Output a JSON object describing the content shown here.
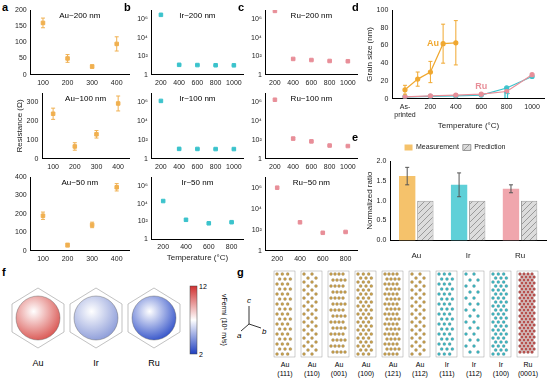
{
  "chart_data": [
    {
      "panel": "a",
      "type": "scatter",
      "annotation": "Au~200 nm",
      "x": [
        100,
        200,
        300,
        400
      ],
      "values": [
        160,
        50,
        25,
        95
      ],
      "errors": [
        15,
        12,
        5,
        22
      ],
      "color": "#f0b050",
      "marker": "square",
      "xlim": [
        50,
        450
      ],
      "xticks": [
        100,
        200,
        300,
        400
      ],
      "ylim": [
        0,
        200
      ],
      "yticks": [
        0,
        50,
        100,
        150,
        200
      ],
      "grid": false
    },
    {
      "type": "scatter",
      "annotation": "Au~100 nm",
      "ylabel": "Resistance (Ω)",
      "x": [
        100,
        200,
        300,
        400
      ],
      "values": [
        240,
        65,
        130,
        295
      ],
      "errors": [
        30,
        20,
        20,
        40
      ],
      "color": "#f0b050",
      "marker": "square",
      "xlim": [
        50,
        450
      ],
      "xticks": [
        100,
        200,
        300,
        400
      ],
      "ylim": [
        0,
        350
      ],
      "yticks": [
        0,
        100,
        200,
        300
      ],
      "grid": false
    },
    {
      "type": "scatter",
      "annotation": "Au~50 nm",
      "x": [
        100,
        200,
        300,
        400
      ],
      "values": [
        190,
        30,
        140,
        345
      ],
      "errors": [
        20,
        10,
        15,
        20
      ],
      "color": "#f0b050",
      "marker": "square",
      "xlim": [
        50,
        450
      ],
      "xticks": [
        100,
        200,
        300,
        400
      ],
      "ylim": [
        0,
        400
      ],
      "yticks": [
        0,
        100,
        200,
        300,
        400
      ],
      "grid": false
    },
    {
      "panel": "b",
      "type": "scatter",
      "annotation": "Ir~200 nm",
      "log": "y",
      "x": [
        200,
        400,
        600,
        800,
        1000
      ],
      "values": [
        3000000,
        11.5,
        10.8,
        10.3,
        10.1
      ],
      "errors": [
        0,
        0.3,
        0.2,
        0.2,
        0.2
      ],
      "color": "#3cc3cc",
      "marker": "square",
      "xlim": [
        100,
        1100
      ],
      "xticks": [
        200,
        400,
        600,
        800,
        1000
      ],
      "ylim": [
        1,
        10000000
      ],
      "yticks": [
        1,
        {
          "value": 100,
          "label": "10²"
        },
        {
          "value": 10000,
          "label": "10⁴"
        },
        {
          "value": 1000000,
          "label": "10⁶"
        }
      ],
      "grid": false
    },
    {
      "type": "scatter",
      "annotation": "Ir~100 nm",
      "log": "y",
      "x": [
        200,
        400,
        600,
        800,
        1000
      ],
      "values": [
        1500000,
        11,
        10.8,
        10.5,
        10.5
      ],
      "errors": [
        0,
        1,
        0.5,
        0.3,
        0.4
      ],
      "color": "#3cc3cc",
      "marker": "square",
      "xlim": [
        100,
        1100
      ],
      "xticks": [
        200,
        400,
        600,
        800,
        1000
      ],
      "ylim": [
        1,
        10000000
      ],
      "yticks": [
        1,
        {
          "value": 100,
          "label": "10²"
        },
        {
          "value": 10000,
          "label": "10⁴"
        },
        {
          "value": 1000000,
          "label": "10⁶"
        }
      ],
      "grid": false
    },
    {
      "type": "scatter",
      "annotation": "Ir~50 nm",
      "xlabel": "Temperature (°C)",
      "log": "y",
      "x": [
        200,
        400,
        600,
        800
      ],
      "values": [
        20000,
        150,
        60,
        80
      ],
      "errors": [
        0,
        40,
        10,
        10
      ],
      "color": "#3cc3cc",
      "marker": "square",
      "xlim": [
        100,
        900
      ],
      "xticks": [
        200,
        400,
        600,
        800
      ],
      "ylim": [
        1,
        10000000
      ],
      "yticks": [
        1,
        {
          "value": 100,
          "label": "10²"
        },
        {
          "value": 10000,
          "label": "10⁴"
        },
        {
          "value": 1000000,
          "label": "10⁶"
        }
      ],
      "grid": false
    },
    {
      "panel": "c",
      "type": "scatter",
      "annotation": "Ru~200 nm",
      "log": "y",
      "x": [
        200,
        400,
        600,
        800,
        1000
      ],
      "values": [
        8000000,
        50,
        38,
        30,
        28
      ],
      "errors": [
        0,
        8,
        4,
        5,
        4
      ],
      "color": "#e88f99",
      "marker": "square",
      "xlim": [
        100,
        1100
      ],
      "xticks": [
        200,
        400,
        600,
        800,
        1000
      ],
      "ylim": [
        1,
        10000000
      ],
      "yticks": [
        1,
        {
          "value": 100,
          "label": "10²"
        },
        {
          "value": 10000,
          "label": "10⁴"
        },
        {
          "value": 1000000,
          "label": "10⁶"
        }
      ],
      "grid": false
    },
    {
      "type": "scatter",
      "annotation": "Ru~100 nm",
      "log": "y",
      "x": [
        200,
        400,
        600,
        800,
        1000
      ],
      "values": [
        2000000,
        140,
        70,
        25,
        22
      ],
      "errors": [
        0,
        40,
        10,
        3,
        3
      ],
      "color": "#e88f99",
      "marker": "square",
      "xlim": [
        100,
        1100
      ],
      "xticks": [
        200,
        400,
        600,
        800,
        1000
      ],
      "ylim": [
        1,
        10000000
      ],
      "yticks": [
        1,
        {
          "value": 100,
          "label": "10²"
        },
        {
          "value": 10000,
          "label": "10⁴"
        },
        {
          "value": 1000000,
          "label": "10⁶"
        }
      ],
      "grid": false
    },
    {
      "type": "scatter",
      "annotation": "Ru~50 nm",
      "log": "y",
      "x": [
        200,
        400,
        600,
        800
      ],
      "values": [
        1000000,
        500,
        50,
        60
      ],
      "errors": [
        0,
        60,
        5,
        8
      ],
      "color": "#e88f99",
      "marker": "square",
      "xlim": [
        100,
        900
      ],
      "xticks": [
        200,
        400,
        600,
        800
      ],
      "ylim": [
        1,
        10000000
      ],
      "yticks": [
        1,
        {
          "value": 100,
          "label": "10²"
        },
        {
          "value": 10000,
          "label": "10⁴"
        },
        {
          "value": 1000000,
          "label": "10⁶"
        }
      ],
      "grid": false
    },
    {
      "panel": "d",
      "type": "line",
      "xlabel": "Temperature (°C)",
      "ylabel": "Grain size (nm)",
      "marker": "circle",
      "xlim": [
        -100,
        1100
      ],
      "xticks": [
        {
          "value": 0,
          "label": "As-printed"
        },
        200,
        400,
        600,
        800,
        1000
      ],
      "ylim": [
        0,
        100
      ],
      "yticks": [
        0,
        20,
        40,
        60,
        80,
        100
      ],
      "grid": false,
      "series": [
        {
          "name": "Au",
          "color": "#f0a830",
          "x": [
            0,
            100,
            200,
            300,
            400
          ],
          "values": [
            10,
            22,
            30,
            62,
            63
          ],
          "errors": [
            5,
            8,
            12,
            22,
            25
          ]
        },
        {
          "name": "Ru",
          "color": "#e88f99",
          "x": [
            0,
            200,
            400,
            600,
            800,
            1000
          ],
          "values": [
            2,
            3,
            4,
            5,
            8,
            27
          ]
        },
        {
          "name": "Ir",
          "color": "#3cc3cc",
          "x": [
            0,
            200,
            400,
            600,
            800,
            1000
          ],
          "values": [
            2,
            2.5,
            3,
            4,
            12,
            25
          ]
        }
      ]
    },
    {
      "panel": "e",
      "type": "bar",
      "ylabel": "Normalized ratio",
      "categories": [
        "Au",
        "Ir",
        "Ru"
      ],
      "ylim": [
        0,
        2
      ],
      "yticks": [
        {
          "value": 0,
          "label": "0.0"
        },
        0.5,
        {
          "value": 1,
          "label": "1.0"
        },
        1.5,
        {
          "value": 2,
          "label": "2.0"
        }
      ],
      "legend": "top",
      "grid": false,
      "series": [
        {
          "name": "Measurement",
          "colors": [
            "#f5c26b",
            "#5fd0d8",
            "#f0a6ad"
          ],
          "values": [
            1.62,
            1.4,
            1.3
          ],
          "errors": [
            0.22,
            0.3,
            0.1
          ]
        },
        {
          "name": "Prediction",
          "color": "#9a9a9a",
          "values": [
            1,
            1,
            1
          ]
        }
      ]
    }
  ],
  "figures": {
    "f": {
      "panel": "f",
      "items": [
        {
          "label": "Au",
          "color": "#d9534f"
        },
        {
          "label": "Ir",
          "color": "#8a9ad8"
        },
        {
          "label": "Ru",
          "color": "#3050c8"
        }
      ],
      "colorbar": {
        "range": [
          2,
          12
        ],
        "ticks": [
          2,
          12
        ],
        "label": "vFermi (10⁵ m/s)",
        "colors": [
          "#2040c0",
          "#ffffff",
          "#d03030"
        ]
      }
    },
    "g": {
      "panel": "g",
      "axes": [
        "c",
        "a",
        "b"
      ],
      "colors": {
        "Au": "#c9a04a",
        "Ir": "#3bb8c4",
        "Ru": "#c0504d"
      },
      "columns": [
        {
          "element": "Au",
          "facet": "(111)"
        },
        {
          "element": "Au",
          "facet": "(110)"
        },
        {
          "element": "Au",
          "facet": "(001)"
        },
        {
          "element": "Au",
          "facet": "(100)"
        },
        {
          "element": "Au",
          "facet": "(121)"
        },
        {
          "element": "Au",
          "facet": "(112)"
        },
        {
          "element": "Ir",
          "facet": "(111)"
        },
        {
          "element": "Ir",
          "facet": "(112)"
        },
        {
          "element": "Ir",
          "facet": "(100)"
        },
        {
          "element": "Ru",
          "facet": "(0001)"
        }
      ]
    }
  }
}
